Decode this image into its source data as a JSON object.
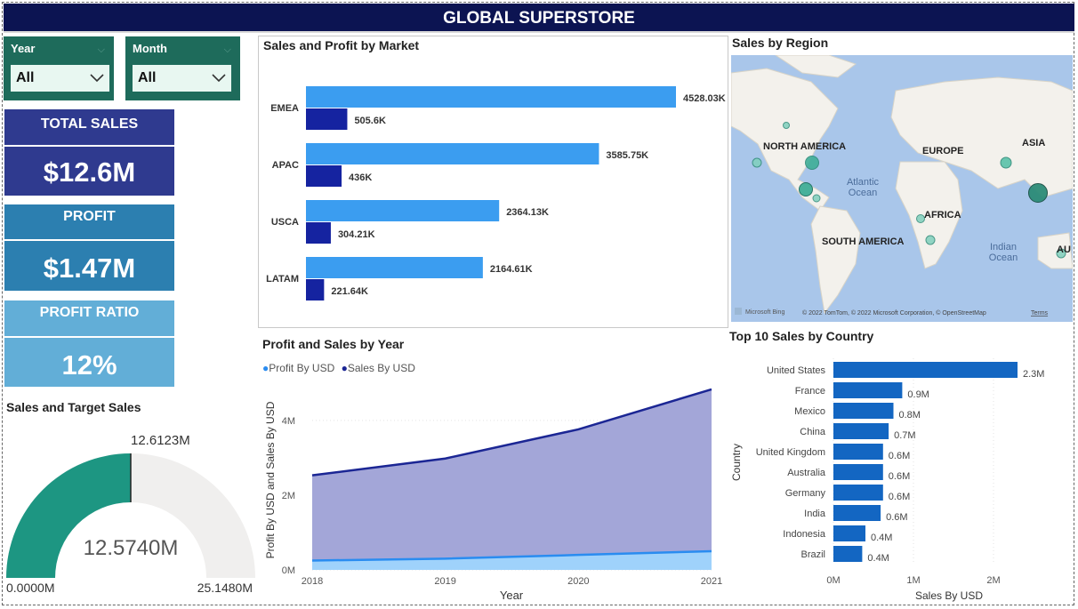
{
  "title": "GLOBAL SUPERSTORE",
  "slicers": {
    "year": {
      "label": "Year",
      "value": "All"
    },
    "month": {
      "label": "Month",
      "value": "All"
    }
  },
  "kpis": {
    "sales": {
      "label": "TOTAL SALES",
      "value": "$12.6M"
    },
    "profit": {
      "label": "PROFIT",
      "value": "$1.47M"
    },
    "ratio": {
      "label": "PROFIT RATIO",
      "value": "12%"
    }
  },
  "gauge": {
    "title": "Sales and Target Sales",
    "value": 12.574,
    "value_label": "12.5740M",
    "min_label": "0.0000M",
    "max_label": "25.1480M",
    "target_label": "12.6123M",
    "max": 25.148,
    "fill_color": "#1d9682",
    "track_color": "#f0efee"
  },
  "market": {
    "title": "Sales and Profit by Market",
    "sales_color": "#3b9df0",
    "profit_color": "#1523a0"
  },
  "year_chart": {
    "title": "Profit and Sales by Year",
    "legend": [
      "Profit By USD",
      "Sales By USD"
    ],
    "profit_color": "#2a8cf0",
    "sales_color": "#1b2694"
  },
  "region": {
    "title": "Sales by Region",
    "labels": [
      "NORTH AMERICA",
      "EUROPE",
      "ASIA",
      "AFRICA",
      "SOUTH AMERICA",
      "AU"
    ],
    "oceans": [
      "Atlantic",
      "Ocean",
      "Indian",
      "Ocean"
    ],
    "brand": "Microsoft Bing",
    "copyright": "© 2022 TomTom, © 2022 Microsoft Corporation, © OpenStreetMap",
    "terms": "Terms"
  },
  "country": {
    "title": "Top 10 Sales by Country",
    "bar_color": "#1366c2"
  },
  "chart_data": [
    {
      "type": "bar",
      "orientation": "horizontal",
      "title": "Sales and Profit by Market",
      "categories": [
        "EMEA",
        "APAC",
        "USCA",
        "LATAM"
      ],
      "series": [
        {
          "name": "Sales",
          "values": [
            4528.03,
            3585.75,
            2364.13,
            2164.61
          ],
          "labels": [
            "4528.03K",
            "3585.75K",
            "2364.13K",
            "2164.61K"
          ]
        },
        {
          "name": "Profit",
          "values": [
            505.6,
            436,
            304.21,
            221.64
          ],
          "labels": [
            "505.6K",
            "436K",
            "304.21K",
            "221.64K"
          ]
        }
      ]
    },
    {
      "type": "area",
      "title": "Profit and Sales by Year",
      "x": [
        "2018",
        "2019",
        "2020",
        "2021"
      ],
      "xlabel": "Year",
      "ylabel": "Profit By USD and Sales By USD",
      "ylim": [
        0,
        4.9
      ],
      "yticks": [
        "0M",
        "2M",
        "4M"
      ],
      "series": [
        {
          "name": "Sales By USD",
          "values": [
            2.53,
            2.98,
            3.76,
            4.83
          ]
        },
        {
          "name": "Profit By USD",
          "values": [
            0.25,
            0.3,
            0.4,
            0.5
          ]
        }
      ]
    },
    {
      "type": "bar",
      "orientation": "horizontal",
      "title": "Top 10 Sales by Country",
      "xlabel": "Sales By USD",
      "ylabel": "Country",
      "xlim": [
        0,
        2.5
      ],
      "xticks": [
        "0M",
        "1M",
        "2M"
      ],
      "categories": [
        "United States",
        "France",
        "Mexico",
        "China",
        "United Kingdom",
        "Australia",
        "Germany",
        "India",
        "Indonesia",
        "Brazil"
      ],
      "values": [
        2.3,
        0.86,
        0.75,
        0.69,
        0.62,
        0.62,
        0.62,
        0.59,
        0.4,
        0.36
      ],
      "labels": [
        "2.3M",
        "0.9M",
        "0.8M",
        "0.7M",
        "0.6M",
        "0.6M",
        "0.6M",
        "0.6M",
        "0.4M",
        "0.4M"
      ]
    }
  ]
}
